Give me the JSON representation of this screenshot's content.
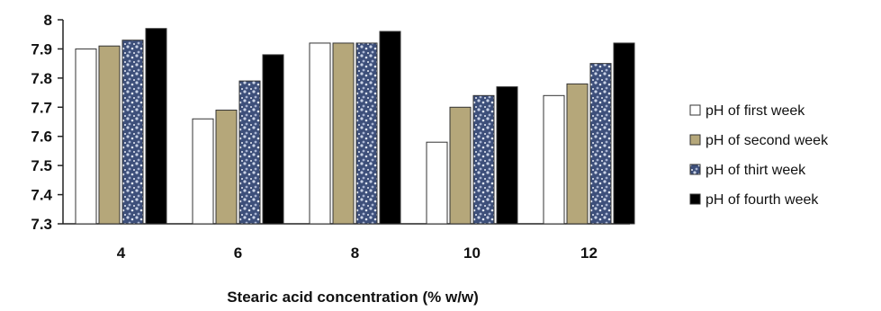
{
  "chart_data": {
    "type": "bar",
    "title": "",
    "xlabel": "Stearic acid concentration (% w/w)",
    "ylabel": "",
    "categories": [
      "4",
      "6",
      "8",
      "10",
      "12"
    ],
    "ylim": [
      7.3,
      8
    ],
    "yticks": [
      "7.3",
      "7.4",
      "7.5",
      "7.6",
      "7.7",
      "7.8",
      "7.9",
      "8"
    ],
    "grid": false,
    "legend_position": "right",
    "series": [
      {
        "name": "pH of first week",
        "values": [
          7.9,
          7.66,
          7.92,
          7.58,
          7.74
        ],
        "color": "#ffffff",
        "pattern": "none"
      },
      {
        "name": "pH of second  week",
        "values": [
          7.91,
          7.69,
          7.92,
          7.7,
          7.78
        ],
        "color": "#b5a77a",
        "pattern": "none"
      },
      {
        "name": "pH of thirt week",
        "values": [
          7.93,
          7.79,
          7.92,
          7.74,
          7.85
        ],
        "color": "#3d4f7a",
        "pattern": "speckle"
      },
      {
        "name": "pH of fourth week",
        "values": [
          7.97,
          7.88,
          7.96,
          7.77,
          7.92
        ],
        "color": "#000000",
        "pattern": "none"
      }
    ]
  }
}
